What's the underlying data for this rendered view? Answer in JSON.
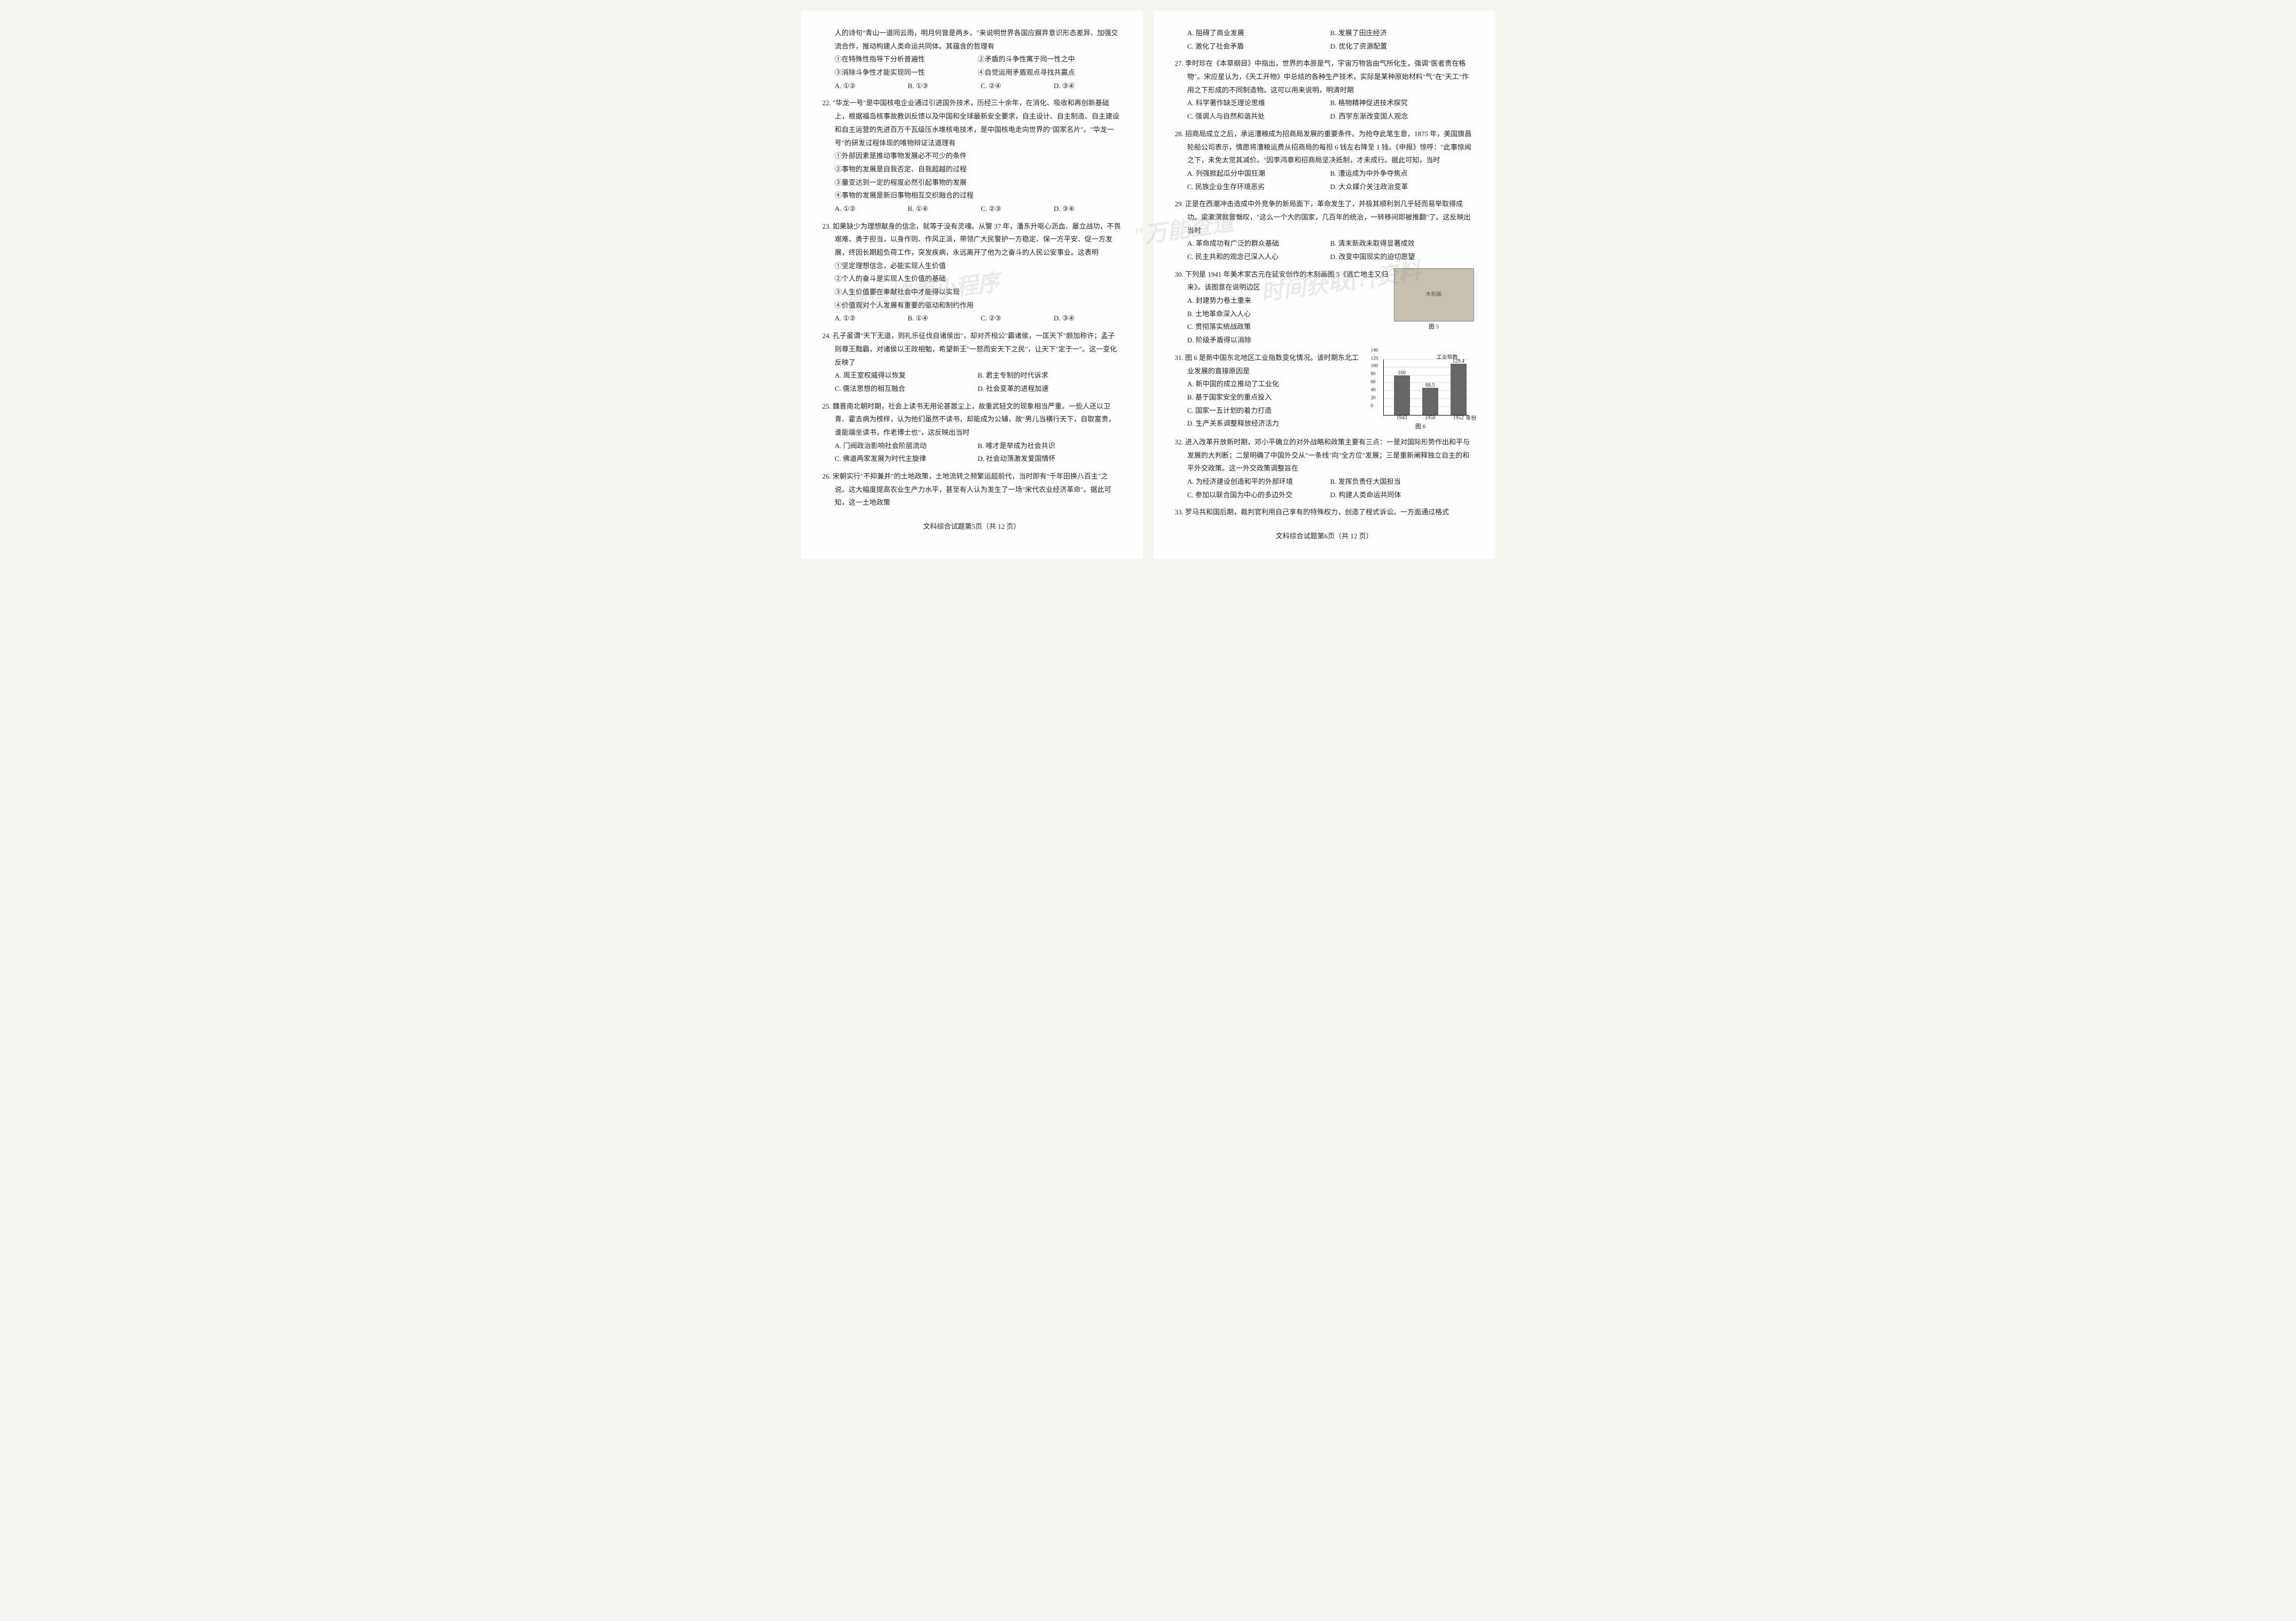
{
  "page_left": {
    "intro_cont": "人的诗句\"青山一道同云雨，明月何曾是两乡。\"来说明世界各国应摒弃意识形态差异、加强交流合作，推动构建人类命运共同体。其蕴含的哲理有",
    "intro_subs": [
      "①在特殊性指导下分析普遍性",
      "②矛盾的斗争性寓于同一性之中",
      "③消除斗争性才能实现同一性",
      "④自觉运用矛盾观点寻找共赢点"
    ],
    "intro_opts": [
      "A. ①②",
      "B. ①③",
      "C. ②④",
      "D. ③④"
    ],
    "q22": {
      "text": "22. \"华龙一号\"是中国核电企业通过引进国外技术，历经三十余年，在消化、吸收和再创新基础上，根据福岛核事故教训反馈以及中国和全球最新安全要求，自主设计、自主制造、自主建设和自主运营的先进百万千瓦级压水堆核电技术，是中国核电走向世界的\"国家名片\"。\"华龙一号\"的研发过程体现的唯物辩证法道理有",
      "subs": [
        "①外部因素是推动事物发展必不可少的条件",
        "②事物的发展是自我否定、自我超越的过程",
        "③量变达到一定的程度必然引起事物的发展",
        "④事物的发展是新旧事物相互交织融合的过程"
      ],
      "opts": [
        "A. ①②",
        "B. ①④",
        "C. ②③",
        "D. ③④"
      ]
    },
    "q23": {
      "text": "23. 如果缺少为理想献身的信念，就等于没有灵魂。从警 37 年，潘东升呕心沥血、屡立战功，不畏艰难、勇于担当，以身作则、作风正派，带领广大民警护一方稳定、保一方平安、促一方发展，终因长期超负荷工作，突发疾病，永远离开了他为之奋斗的人民公安事业。这表明",
      "subs": [
        "①坚定理想信念，必能实现人生价值",
        "②个人的奋斗是实现人生价值的基础",
        "③人生价值要在奉献社会中才能得以实现",
        "④价值观对个人发展有重要的驱动和制约作用"
      ],
      "opts": [
        "A. ①②",
        "B. ①④",
        "C. ②③",
        "D. ③④"
      ]
    },
    "q24": {
      "text": "24. 孔子虽谓\"天下无道，则礼乐征伐自诸侯出\"，却对齐桓公\"霸诸侯，一匡天下\"颇加称许；孟子则尊王黜霸，对诸侯以王政相勉，希望新王\"一怒而安天下之民\"，让天下\"定于一\"。这一变化反映了",
      "opts": [
        "A. 周王室权威得以恢复",
        "B. 君主专制的时代诉求",
        "C. 儒法思想的相互融合",
        "D. 社会变革的进程加速"
      ]
    },
    "q25": {
      "text": "25. 魏晋南北朝时期，社会上读书无用论甚嚣尘上，故重武轻文的现象相当严重。一些人还以卫青、霍去病为榜样，认为他们虽然不读书，却能成为公辅，故\"男儿当横行天下，自取富贵，谁能端坐读书，作老博士也\"，这反映出当时",
      "opts": [
        "A. 门阀政治影响社会阶层流动",
        "B. 唯才是举成为社会共识",
        "C. 佛道两家发展为时代主旋律",
        "D. 社会动荡激发爱国情怀"
      ]
    },
    "q26": {
      "text": "26. 宋朝实行\"不抑兼并\"的土地政策，土地流转之频繁运超前代，当时即有\"千年田换八百主\"之说。这大幅度提高农业生产力水平，甚至有人认为发生了一场\"宋代农业经济革命\"。据此可知，这一土地政策"
    },
    "footer": "文科综合试题第5页（共 12 页）"
  },
  "page_right": {
    "q26_opts": [
      "A. 阻碍了商业发展",
      "B. 发展了田庄经济",
      "C. 激化了社会矛盾",
      "D. 优化了资源配置"
    ],
    "q27": {
      "text": "27. 李时珍在《本草纲目》中指出，世界的本原是气，宇宙万物皆由气所化生，强调\"医者贵在格物\"。宋应星认为，《天工开物》中总结的各种生产技术，实际是某种原始材料\"气\"在\"天工\"作用之下形成的不同制造物。这可以用来说明，明清时期",
      "opts": [
        "A. 科学著作缺乏理论思维",
        "B. 格物精神促进技术探究",
        "C. 强调人与自然和谐共处",
        "D. 西学东渐改变国人观念"
      ]
    },
    "q28": {
      "text": "28. 招商局成立之后，承运漕粮成为招商局发展的重要条件。为抢夺此笔生意，1875 年，美国旗昌轮船公司表示，情愿将漕粮运费从招商局的每担 6 钱左右降至 1 钱。《申报》惊呼：\"此事惊闻之下，未免太觉其减价。\"因李鸿章和招商局坚决抵制，才未成行。据此可知，当时",
      "opts": [
        "A. 列强掀起瓜分中国狂潮",
        "B. 漕运成为中外争夺焦点",
        "C. 民族企业生存环境恶劣",
        "D. 大众媒介关注政治变革"
      ]
    },
    "q29": {
      "text": "29. 正是在西潮冲击造成中外竞争的新局面下，革命发生了，并极其顺利到几乎轻而易举取得成功。梁漱溟就曾慨叹，\"这么一个大的国家，几百年的统治，一转移间即被推翻\"了。这反映出当时",
      "opts": [
        "A. 革命成功有广泛的群众基础",
        "B. 清末新政未取得显著成效",
        "C. 民主共和的观念已深入人心",
        "D. 改变中国现实的迫切愿望"
      ]
    },
    "q30": {
      "text": "30. 下列是 1941 年美术家古元在延安创作的木刻画图 5《逃亡地主又归来》。该图意在说明边区",
      "img_caption": "图 5",
      "opts": [
        "A. 封建势力卷土重来",
        "B. 土地革命深入人心",
        "C. 贯彻落实统战政策",
        "D. 阶级矛盾得以消除"
      ]
    },
    "q31": {
      "text": "31. 图 6 是新中国东北地区工业指数变化情况。该时期东北工业发展的直接原因是",
      "opts": [
        "A. 新中国的成立推动了工业化",
        "B. 基于国家安全的重点投入",
        "C. 国家一五计划的着力打造",
        "D. 生产关系调整释放经济活力"
      ],
      "chart": {
        "type": "bar",
        "title": "工业指数",
        "categories": [
          "1943",
          "1950",
          "1952"
        ],
        "values": [
          100,
          68.5,
          129.4
        ],
        "ylim": [
          0,
          140
        ],
        "ytick_step": 20,
        "bar_color": "#666666",
        "grid_color": "#dddddd",
        "xlabel": "年份",
        "caption": "图 6"
      }
    },
    "q32": {
      "text": "32. 进入改革开放新时期，邓小平确立的对外战略和政策主要有三点：一是对国际形势作出和平与发展的大判断；二是明确了中国外交从\"一条线\"向\"全方位\"发展；三是重新阐释独立自主的和平外交政策。这一外交政策调整旨在",
      "opts": [
        "A. 为经济建设创造和平的外部环境",
        "B. 发挥负责任大国担当",
        "C. 参加以联合国为中心的多边外交",
        "D. 构建人类命运共同体"
      ]
    },
    "q33": {
      "text": "33. 罗马共和国后期，裁判官利用自己享有的特殊权力，创造了程式诉讼。一方面通过格式"
    },
    "footer": "文科综合试题第6页（共 12 页）"
  },
  "watermarks": {
    "wm1": "微信搜索小程序",
    "wm2": "\"万能查道\"",
    "wm3": "时间获取[?]资料"
  }
}
